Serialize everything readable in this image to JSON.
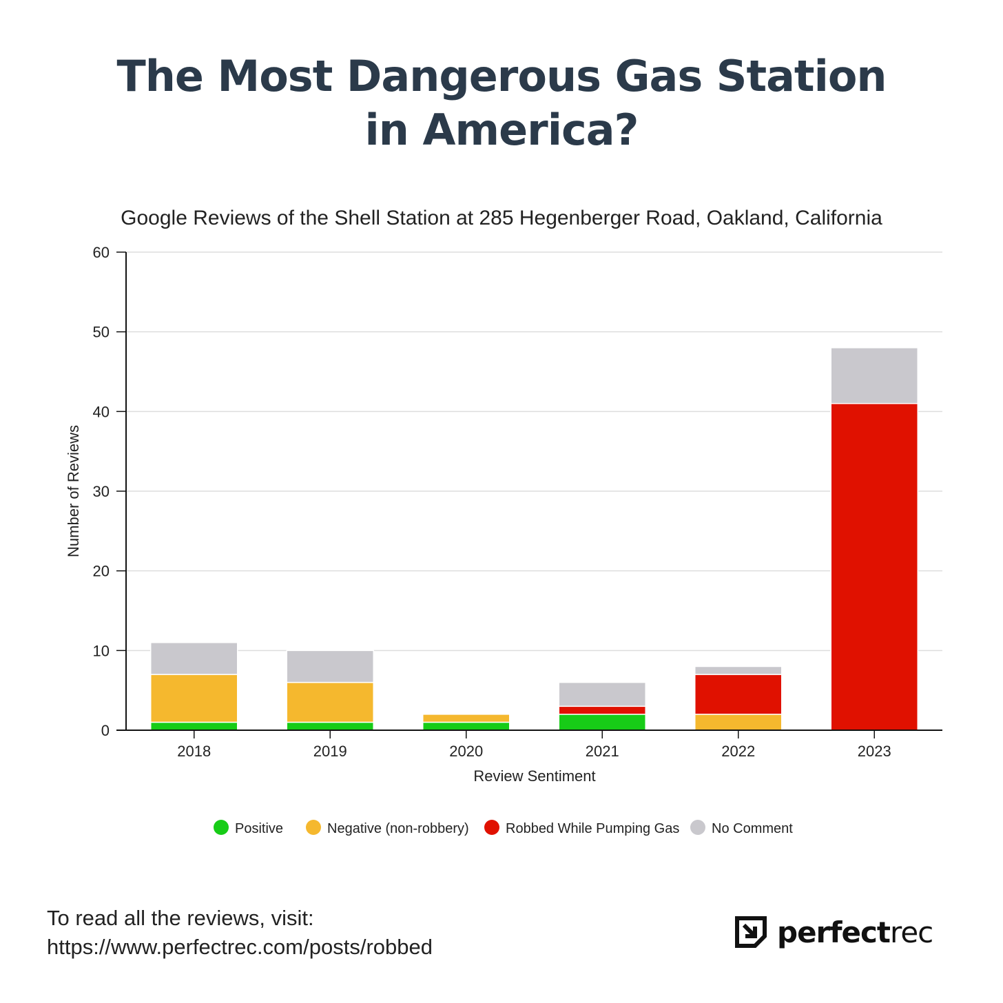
{
  "title": {
    "line1": "The Most Dangerous Gas Station",
    "line2": "in America?"
  },
  "chart_data": {
    "type": "bar",
    "stacked": true,
    "title": "Google Reviews of the Shell Station at 285 Hegenberger Road, Oakland, California",
    "xlabel": "Review Sentiment",
    "ylabel": "Number of Reviews",
    "ylim": [
      0,
      60
    ],
    "yticks": [
      0,
      10,
      20,
      30,
      40,
      50,
      60
    ],
    "grid": true,
    "legend_position": "bottom",
    "categories": [
      "2018",
      "2019",
      "2020",
      "2021",
      "2022",
      "2023"
    ],
    "series": [
      {
        "name": "Positive",
        "color": "#17cc17",
        "values": [
          1,
          1,
          1,
          2,
          0,
          0
        ]
      },
      {
        "name": "Negative (non-robbery)",
        "color": "#f5b82e",
        "values": [
          6,
          5,
          1,
          0,
          2,
          0
        ]
      },
      {
        "name": "Robbed While Pumping Gas",
        "color": "#e01100",
        "values": [
          0,
          0,
          0,
          1,
          5,
          41
        ]
      },
      {
        "name": "No Comment",
        "color": "#c9c8cd",
        "values": [
          4,
          4,
          0,
          3,
          1,
          7
        ]
      }
    ]
  },
  "footer": {
    "line1": "To read all the reviews, visit:",
    "line2": "https://www.perfectrec.com/posts/robbed"
  },
  "logo": {
    "text_bold": "perfect",
    "text_light": "rec",
    "mark_icon": "perfectrec-arrow-icon"
  }
}
